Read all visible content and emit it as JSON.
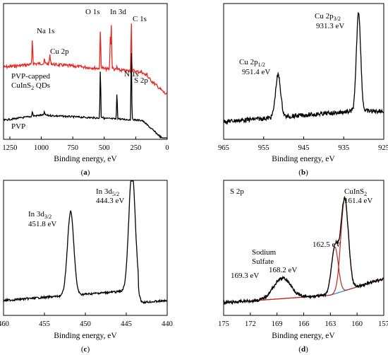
{
  "chart_data": [
    {
      "id": "a",
      "type": "line",
      "panel_label": "(a)",
      "xlabel": "Binding energy, eV",
      "ylabel": "",
      "xlim": [
        1300,
        0
      ],
      "x_reversed": true,
      "xticks": [
        1250,
        1000,
        750,
        500,
        250,
        0
      ],
      "grid": false,
      "series": [
        {
          "name": "PVP-capped CuInS2 QDs",
          "color": "#e8251f",
          "peaks": [
            {
              "label": "Na 1s",
              "x": 1071
            },
            {
              "label": "Cu 2p",
              "x": 932
            },
            {
              "label": "O 1s",
              "x": 531
            },
            {
              "label": "In 3d",
              "x": 444
            },
            {
              "label": "N 1s",
              "x": 399
            },
            {
              "label": "C 1s",
              "x": 285
            },
            {
              "label": "S 2p",
              "x": 162
            }
          ]
        },
        {
          "name": "PVP",
          "color": "#000000",
          "peaks": [
            {
              "label": "O 1s",
              "x": 531
            },
            {
              "label": "N 1s",
              "x": 399
            },
            {
              "label": "C 1s",
              "x": 285
            }
          ]
        }
      ],
      "annotations": [
        "Na 1s",
        "Cu 2p",
        "O 1s",
        "In 3d",
        "C 1s",
        "N 1s",
        "S 2p",
        "PVP-capped",
        "CuInS2 QDs",
        "PVP"
      ]
    },
    {
      "id": "b",
      "type": "line",
      "panel_label": "(b)",
      "xlabel": "Binding energy, eV",
      "xlim": [
        965,
        925
      ],
      "x_reversed": true,
      "xticks": [
        965,
        955,
        945,
        935,
        925
      ],
      "grid": false,
      "series": [
        {
          "name": "",
          "color": "#000000",
          "peaks": [
            {
              "label": "Cu 2p1/2",
              "x": 951.4,
              "value": "951.4 eV"
            },
            {
              "label": "Cu 2p3/2",
              "x": 931.3,
              "value": "931.3 eV"
            }
          ]
        }
      ]
    },
    {
      "id": "c",
      "type": "line",
      "panel_label": "(c)",
      "xlabel": "Binding energy, eV",
      "xlim": [
        460,
        440
      ],
      "x_reversed": true,
      "xticks": [
        460,
        455,
        450,
        445,
        440
      ],
      "grid": false,
      "series": [
        {
          "name": "",
          "color": "#000000",
          "peaks": [
            {
              "label": "In 3d3/2",
              "x": 451.8,
              "value": "451.8 eV"
            },
            {
              "label": "In 3d5/2",
              "x": 444.3,
              "value": "444.3 eV"
            }
          ]
        }
      ]
    },
    {
      "id": "d",
      "type": "line",
      "panel_label": "(d)",
      "title": "S 2p",
      "xlabel": "Binding energy, eV",
      "xlim": [
        175,
        157
      ],
      "x_reversed": true,
      "xticks": [
        175,
        172,
        169,
        166,
        163,
        160,
        157
      ],
      "grid": false,
      "series": [
        {
          "name": "",
          "color": "#000000",
          "role": "raw spectrum"
        },
        {
          "name": "",
          "color": "#c0281d",
          "role": "CuInS2 fit",
          "components": [
            161.4,
            162.5
          ]
        },
        {
          "name": "",
          "color": "#2e7fc4",
          "role": "Sodium Sulfate fit",
          "components": [
            168.2,
            169.3
          ]
        }
      ],
      "annotations": [
        {
          "label": "CuInS2",
          "x": 161.4,
          "value": "161.4 eV"
        },
        {
          "label": "",
          "x": 162.5,
          "value": "162.5 eV"
        },
        {
          "label": "Sodium Sulfate",
          "x": 168.2,
          "value": "168.2 eV"
        },
        {
          "label": "",
          "x": 169.3,
          "value": "169.3 eV"
        }
      ]
    }
  ]
}
